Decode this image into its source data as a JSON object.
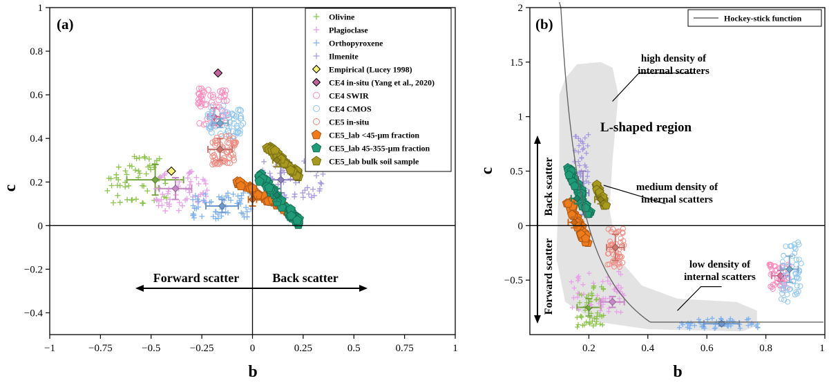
{
  "chart_data": [
    {
      "type": "scatter",
      "panel_label": "(a)",
      "xlabel": "b",
      "ylabel": "c",
      "xlim": [
        -1,
        1
      ],
      "ylim": [
        -0.5,
        1
      ],
      "xticks": [
        -1,
        -0.75,
        -0.5,
        -0.25,
        0,
        0.25,
        0.5,
        0.75,
        1
      ],
      "xtick_labels": [
        "−1",
        "−0.75",
        "−0.5",
        "−0.25",
        "0",
        "0.25",
        "0.5",
        "0.75",
        "1"
      ],
      "yticks": [
        -0.4,
        -0.2,
        0,
        0.2,
        0.4,
        0.6,
        0.8,
        1
      ],
      "ytick_labels": [
        "−0.4",
        "−0.2",
        "0",
        "0.2",
        "0.4",
        "0.6",
        "0.8",
        "1"
      ],
      "grid": false,
      "reference_lines": {
        "x": 0,
        "y": 0
      },
      "legend_position": "top-right",
      "annotations": {
        "forward": "Forward scatter",
        "back": "Back scatter"
      },
      "series": [
        {
          "name": "Olivine",
          "marker": "plus",
          "color": "#8bc34a",
          "cloud": {
            "x": [
              -0.72,
              -0.42
            ],
            "y": [
              0.1,
              0.32
            ]
          },
          "mean": {
            "x": -0.48,
            "y": 0.21,
            "xerr": 0.14,
            "yerr": 0.07
          }
        },
        {
          "name": "Plagioclase",
          "marker": "plus",
          "color": "#e8a0e8",
          "cloud": {
            "x": [
              -0.48,
              -0.22
            ],
            "y": [
              0.05,
              0.25
            ]
          },
          "mean": {
            "x": -0.38,
            "y": 0.17,
            "xerr": 0.08,
            "yerr": 0.05
          }
        },
        {
          "name": "Orthopyroxene",
          "marker": "plus",
          "color": "#7fb2f0",
          "cloud": {
            "x": [
              -0.3,
              0.0
            ],
            "y": [
              0.03,
              0.15
            ]
          },
          "mean": {
            "x": -0.15,
            "y": 0.09,
            "xerr": 0.08,
            "yerr": 0.03
          }
        },
        {
          "name": "Ilmenite",
          "marker": "plus",
          "color": "#a898e0",
          "cloud": {
            "x": [
              0.05,
              0.35
            ],
            "y": [
              0.12,
              0.3
            ]
          },
          "mean": {
            "x": 0.14,
            "y": 0.21,
            "xerr": 0.09,
            "yerr": 0.06
          }
        },
        {
          "name": "Empirical (Lucey 1998)",
          "marker": "diamond",
          "color": "#f5f07a",
          "points": [
            {
              "x": -0.4,
              "y": 0.25
            }
          ]
        },
        {
          "name": "CE4 in-situ (Yang et al., 2020)",
          "marker": "diamond",
          "color": "#c0619a",
          "points": [
            {
              "x": -0.17,
              "y": 0.7
            }
          ]
        },
        {
          "name": "CE4 SWIR",
          "marker": "circle",
          "color": "#ff88bb",
          "cloud": {
            "x": [
              -0.27,
              -0.12
            ],
            "y": [
              0.45,
              0.63
            ]
          },
          "mean": {
            "x": -0.19,
            "y": 0.5,
            "xerr": 0.03,
            "yerr": 0.04
          }
        },
        {
          "name": "CE4 CMOS",
          "marker": "circle",
          "color": "#8ec6f2",
          "cloud": {
            "x": [
              -0.22,
              -0.04
            ],
            "y": [
              0.4,
              0.55
            ]
          },
          "mean": {
            "x": -0.16,
            "y": 0.47,
            "xerr": 0.04,
            "yerr": 0.02
          }
        },
        {
          "name": "CE5 in-situ",
          "marker": "circle",
          "color": "#f08a80",
          "cloud": {
            "x": [
              -0.2,
              -0.08
            ],
            "y": [
              0.28,
              0.42
            ]
          },
          "mean": {
            "x": -0.16,
            "y": 0.35,
            "xerr": 0.06,
            "yerr": 0.05
          }
        },
        {
          "name": "CE5_lab <45-µm fraction",
          "marker": "pentagon",
          "color": "#f07b1b",
          "cloud": {
            "x": [
              -0.08,
              0.18
            ],
            "y": [
              0.07,
              0.2
            ]
          },
          "mean": {
            "x": 0.0,
            "y": 0.12,
            "xerr": 0.02,
            "yerr": 0.03
          }
        },
        {
          "name": "CE5_lab 45-355-µm fraction",
          "marker": "pentagon",
          "color": "#1e9c78",
          "cloud": {
            "x": [
              0.03,
              0.24
            ],
            "y": [
              0.0,
              0.23
            ]
          },
          "mean": {
            "x": 0.12,
            "y": 0.14,
            "xerr": 0.02,
            "yerr": 0.03
          }
        },
        {
          "name": "CE5_lab bulk soil sample",
          "marker": "pentagon",
          "color": "#a89a1c",
          "cloud": {
            "x": [
              0.07,
              0.23
            ],
            "y": [
              0.23,
              0.37
            ]
          },
          "mean": {
            "x": 0.12,
            "y": 0.3,
            "xerr": 0.02,
            "yerr": 0.03
          }
        }
      ]
    },
    {
      "type": "scatter",
      "panel_label": "(b)",
      "xlabel": "b",
      "ylabel": "c",
      "xlim": [
        0,
        1
      ],
      "ylim": [
        -1,
        2
      ],
      "xticks": [
        0.2,
        0.4,
        0.6,
        0.8,
        1
      ],
      "xtick_labels": [
        "0.2",
        "0.4",
        "0.6",
        "0.8",
        "1"
      ],
      "yticks": [
        -0.5,
        0,
        0.5,
        1,
        1.5,
        2
      ],
      "ytick_labels": [
        "−0.5",
        "0",
        "0.5",
        "1",
        "1.5",
        "2"
      ],
      "grid": false,
      "reference_lines": {
        "y": 0
      },
      "legend_position": "top-right",
      "legend": [
        "Hockey-stick function"
      ],
      "hockey_stick": {
        "a": 0.0965,
        "b_offset": 0.03,
        "c_min": -0.885
      },
      "annotations": {
        "region": "L-shaped region",
        "high": [
          "high density of",
          "internal scatters"
        ],
        "medium": [
          "medium density of",
          "internal scatters"
        ],
        "low": [
          "low density of",
          "internal scatters"
        ],
        "back": "Back scatter",
        "forward": "Forward scatter"
      },
      "series": [
        {
          "name": "Olivine",
          "color": "#8bc34a",
          "cloud": {
            "x": [
              0.16,
              0.25
            ],
            "y": [
              -0.98,
              -0.55
            ]
          },
          "mean": {
            "x": 0.2,
            "y": -0.75,
            "xerr": 0.04,
            "yerr": 0.08
          }
        },
        {
          "name": "Plagioclase",
          "color": "#e8a0e8",
          "cloud": {
            "x": [
              0.14,
              0.32
            ],
            "y": [
              -0.8,
              -0.42
            ]
          },
          "mean": {
            "x": 0.28,
            "y": -0.7,
            "xerr": 0.04,
            "yerr": 0.05
          }
        },
        {
          "name": "Orthopyroxene",
          "color": "#7fb2f0",
          "cloud": {
            "x": [
              0.5,
              0.78
            ],
            "y": [
              -0.95,
              -0.85
            ]
          },
          "mean": {
            "x": 0.65,
            "y": -0.9,
            "xerr": 0.06,
            "yerr": 0.02
          }
        },
        {
          "name": "Ilmenite",
          "color": "#a898e0",
          "cloud": {
            "x": [
              0.15,
              0.2
            ],
            "y": [
              0.2,
              0.85
            ]
          },
          "mean": {
            "x": 0.18,
            "y": 0.3,
            "xerr": 0.02,
            "yerr": 0.2
          }
        },
        {
          "name": "CE4 SWIR",
          "color": "#ff88bb",
          "cloud": {
            "x": [
              0.81,
              0.88
            ],
            "y": [
              -0.6,
              -0.35
            ]
          },
          "mean": {
            "x": 0.85,
            "y": -0.46,
            "xerr": 0.03,
            "yerr": 0.05
          }
        },
        {
          "name": "CE4 CMOS",
          "color": "#8ec6f2",
          "cloud": {
            "x": [
              0.85,
              0.92
            ],
            "y": [
              -0.7,
              -0.15
            ]
          },
          "mean": {
            "x": 0.88,
            "y": -0.4,
            "xerr": 0.03,
            "yerr": 0.12
          }
        },
        {
          "name": "CE5 in-situ",
          "color": "#f08a80",
          "cloud": {
            "x": [
              0.26,
              0.32
            ],
            "y": [
              -0.38,
              -0.02
            ]
          },
          "mean": {
            "x": 0.29,
            "y": -0.2,
            "xerr": 0.03,
            "yerr": 0.12
          }
        },
        {
          "name": "CE5_lab <45-µm fraction",
          "color": "#f07b1b",
          "cloud": {
            "x": [
              0.12,
              0.2
            ],
            "y": [
              -0.15,
              0.25
            ]
          },
          "mean": {
            "x": 0.15,
            "y": 0.03,
            "xerr": 0.02,
            "yerr": 0.05
          }
        },
        {
          "name": "CE5_lab 45-355-µm fraction",
          "color": "#1e9c78",
          "cloud": {
            "x": [
              0.12,
              0.21
            ],
            "y": [
              0.1,
              0.53
            ]
          },
          "mean": {
            "x": 0.16,
            "y": 0.25,
            "xerr": 0.02,
            "yerr": 0.05
          }
        },
        {
          "name": "CE5_lab bulk soil sample",
          "color": "#a89a1c",
          "cloud": {
            "x": [
              0.22,
              0.26
            ],
            "y": [
              0.18,
              0.38
            ]
          },
          "mean": {
            "x": 0.24,
            "y": 0.24,
            "xerr": 0.02,
            "yerr": 0.04
          }
        }
      ]
    }
  ]
}
